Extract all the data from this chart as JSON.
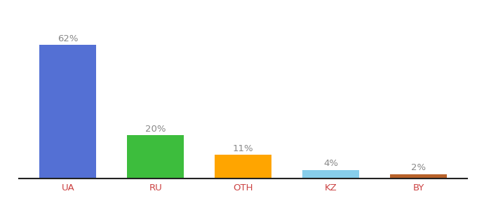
{
  "categories": [
    "UA",
    "RU",
    "OTH",
    "KZ",
    "BY"
  ],
  "values": [
    62,
    20,
    11,
    4,
    2
  ],
  "bar_colors": [
    "#5470D4",
    "#3DBD3D",
    "#FFA500",
    "#87CEEB",
    "#B8622A"
  ],
  "labels": [
    "62%",
    "20%",
    "11%",
    "4%",
    "2%"
  ],
  "ylim": [
    0,
    75
  ],
  "background_color": "#ffffff",
  "label_fontsize": 9.5,
  "tick_fontsize": 9.5,
  "label_color": "#888888",
  "tick_color": "#cc4444",
  "spine_color": "#222222",
  "bar_width": 0.65
}
